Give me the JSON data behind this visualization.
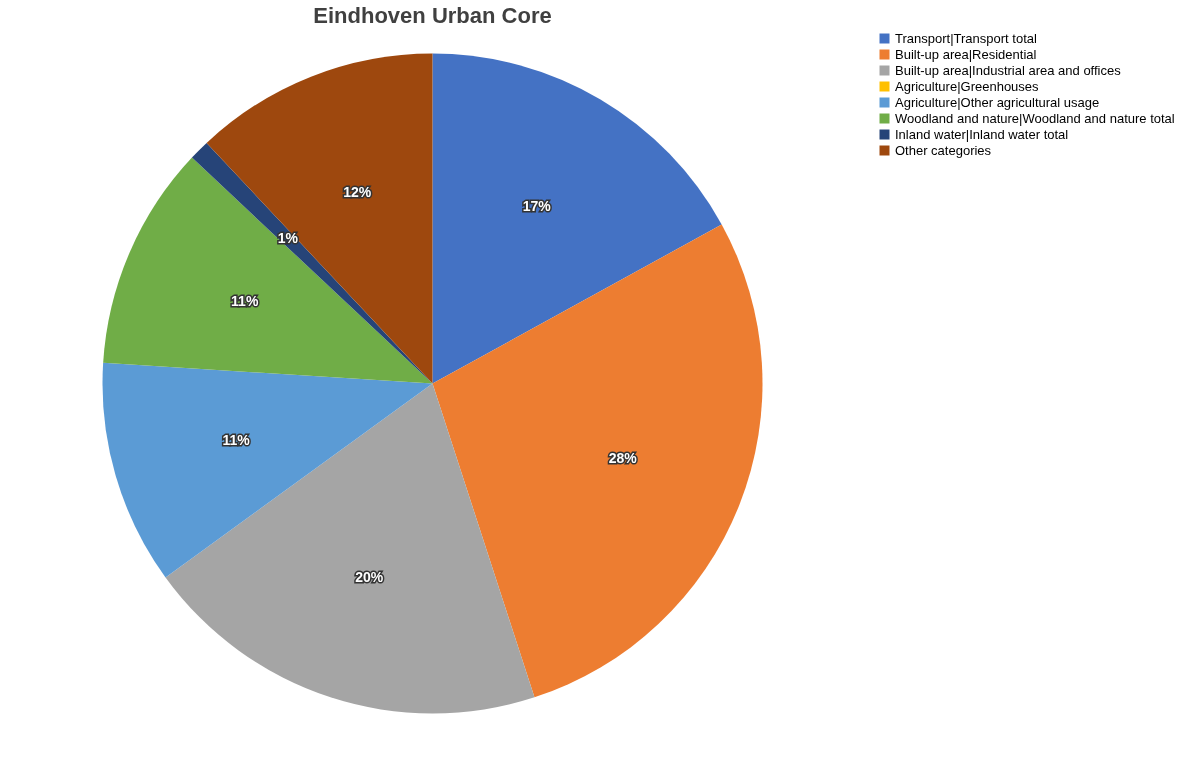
{
  "chart_data": {
    "type": "pie",
    "title": "Eindhoven Urban Core",
    "categories": [
      "Transport|Transport total",
      "Built-up area|Residential",
      "Built-up area|Industrial area and offices",
      "Agriculture|Greenhouses",
      "Agriculture|Other agricultural usage",
      "Woodland and nature|Woodland and nature total",
      "Inland water|Inland water total",
      "Other categories"
    ],
    "values": [
      17,
      28,
      20,
      0,
      11,
      11,
      1,
      12
    ],
    "colors": [
      "#4472c4",
      "#ed7d31",
      "#a5a5a5",
      "#ffc000",
      "#5b9bd5",
      "#70ad47",
      "#264478",
      "#9e480e"
    ],
    "value_labels": [
      "17%",
      "28%",
      "20%",
      null,
      "11%",
      "11%",
      "1%",
      "12%"
    ],
    "legend": "right"
  }
}
